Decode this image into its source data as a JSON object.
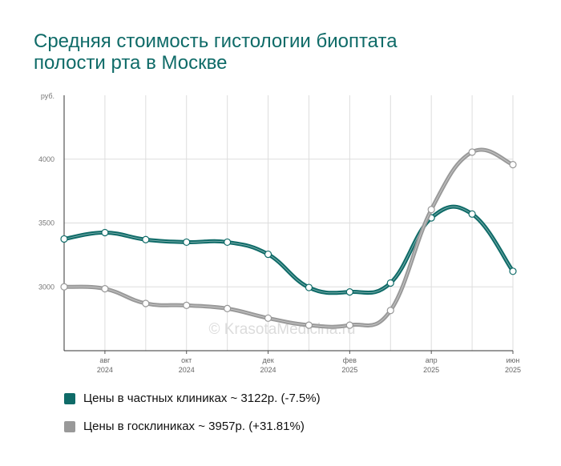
{
  "title": {
    "line1": "Средняя стоимость гистологии биоптата",
    "line2": "полости рта в Москве"
  },
  "watermark": "© KrasotaMedicina.ru",
  "legend": [
    {
      "text": "Цены в частных клиниках ~ 3122р. (-7.5%)",
      "color": "#0f6b68"
    },
    {
      "text": "Цены в госклиниках ~ 3957р. (+31.81%)",
      "color": "#999999"
    }
  ],
  "chart_data": {
    "type": "line",
    "ylabel": "руб.",
    "ylim": [
      2500,
      4500
    ],
    "yticks": [
      3000,
      3500,
      4000
    ],
    "x": [
      0,
      1,
      2,
      3,
      4,
      5,
      6,
      7,
      8,
      9,
      10,
      11
    ],
    "x_ticks": [
      {
        "i": 1,
        "line1": "авг",
        "line2": "2024"
      },
      {
        "i": 3,
        "line1": "окт",
        "line2": "2024"
      },
      {
        "i": 5,
        "line1": "дек",
        "line2": "2024"
      },
      {
        "i": 7,
        "line1": "фев",
        "line2": "2025"
      },
      {
        "i": 9,
        "line1": "апр",
        "line2": "2025"
      },
      {
        "i": 11,
        "line1": "июн",
        "line2": "2025"
      }
    ],
    "series": [
      {
        "name": "Цены в частных клиниках",
        "color": "#0f6b68",
        "values": [
          3375,
          3425,
          3370,
          3350,
          3350,
          3255,
          2995,
          2960,
          3030,
          3540,
          3570,
          3122
        ]
      },
      {
        "name": "Цены в госклиниках",
        "color": "#999999",
        "values": [
          3000,
          2985,
          2870,
          2855,
          2830,
          2755,
          2700,
          2700,
          2815,
          3605,
          4055,
          3957
        ]
      }
    ],
    "grid": true
  }
}
